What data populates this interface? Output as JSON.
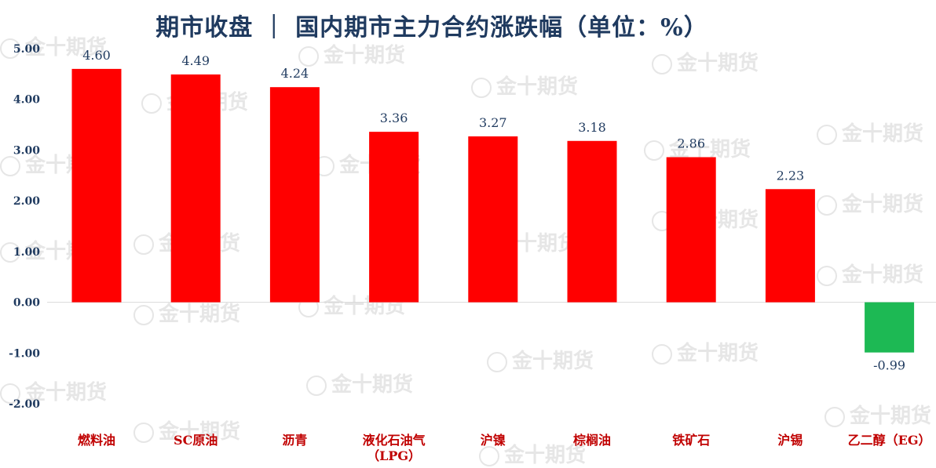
{
  "header": {
    "title": "期市收盘 ｜ 国内期市主力合约涨跌幅（单位：%）",
    "watermark_text": "金十期货"
  },
  "colors": {
    "positive": "#ff0000",
    "negative": "#1db954",
    "title": "#1f3a5f",
    "axis_text": "#1f3a5f",
    "label_text": "#1f3a5f",
    "category_text": "#c00000"
  },
  "chart_data": {
    "type": "bar",
    "title": "期市收盘 ｜ 国内期市主力合约涨跌幅（单位：%）",
    "categories": [
      "燃料油",
      "SC原油",
      "沥青",
      "液化石油气（LPG）",
      "沪镍",
      "棕榈油",
      "铁矿石",
      "沪锡",
      "乙二醇（EG）"
    ],
    "category_lines": [
      [
        "燃料油"
      ],
      [
        "SC原油"
      ],
      [
        "沥青"
      ],
      [
        "液化石油气",
        "（LPG）"
      ],
      [
        "沪镍"
      ],
      [
        "棕榈油"
      ],
      [
        "铁矿石"
      ],
      [
        "沪锡"
      ],
      [
        "乙二醇（EG）"
      ]
    ],
    "values": [
      4.6,
      4.49,
      4.24,
      3.36,
      3.27,
      3.18,
      2.86,
      2.23,
      -0.99
    ],
    "value_labels": [
      "4.60",
      "4.49",
      "4.24",
      "3.36",
      "3.27",
      "3.18",
      "2.86",
      "2.23",
      "-0.99"
    ],
    "ylim": [
      -2.0,
      5.0
    ],
    "yticks": [
      5.0,
      4.0,
      3.0,
      2.0,
      1.0,
      0.0,
      -1.0,
      -2.0
    ],
    "ytick_labels": [
      "5.00",
      "4.00",
      "3.00",
      "2.00",
      "1.00",
      "0.00",
      "-1.00",
      "-2.00"
    ],
    "grid": false,
    "legend": "none"
  }
}
